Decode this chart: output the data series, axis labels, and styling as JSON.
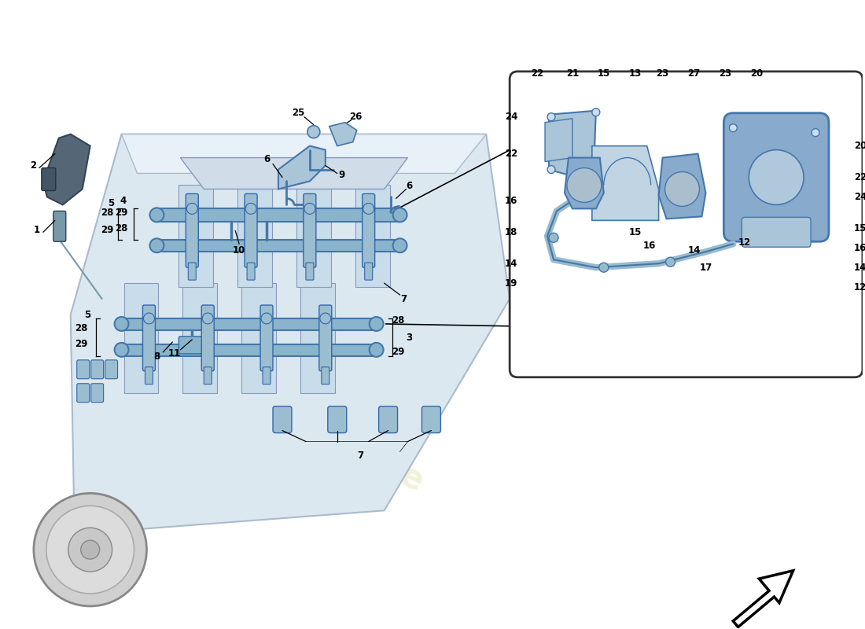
{
  "bg": "#ffffff",
  "engine_fill": "#dce8f0",
  "engine_stroke": "#aabbcc",
  "rail_fill": "#8ab4cc",
  "rail_stroke": "#4477aa",
  "inj_fill": "#9bbdd0",
  "inj_stroke": "#3366aa",
  "coil_fill": "#6688aa",
  "coil_stroke": "#334466",
  "box_fill": "#ffffff",
  "box_stroke": "#333333",
  "pump_fill": "#88aacc",
  "pump_stroke": "#4477aa",
  "bracket_fill": "#aac4d8",
  "bracket_stroke": "#4477aa",
  "pipe_fill": "#99bbcc",
  "pipe_stroke": "#4477aa",
  "wm_color": "#e0e0a0",
  "label_fs": 8.5,
  "lw": 0.9
}
